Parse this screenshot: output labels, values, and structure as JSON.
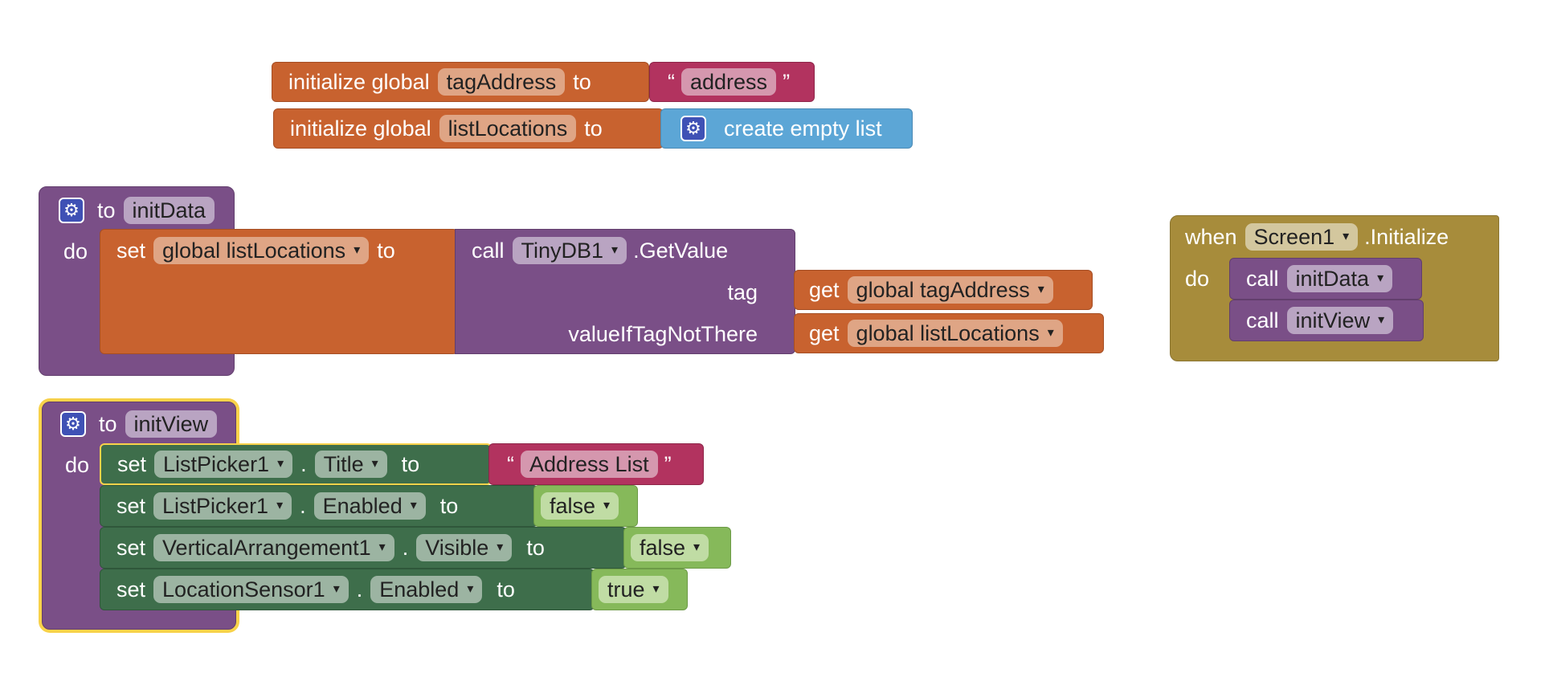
{
  "globals": {
    "tag_address": {
      "kw": "initialize global",
      "name": "tagAddress",
      "to": "to",
      "value": "address",
      "quote_open": "“",
      "quote_close": "”"
    },
    "list_locations": {
      "kw": "initialize global",
      "name": "listLocations",
      "to": "to",
      "value": "create empty list"
    }
  },
  "init_data": {
    "to": "to",
    "name": "initData",
    "do": "do",
    "set": "set",
    "var": "global listLocations",
    "set_to": "to",
    "call": "call",
    "component": "TinyDB1",
    "method": ".GetValue",
    "tag_label": "tag",
    "get1": "get",
    "get1_var": "global tagAddress",
    "vitnt_label": "valueIfTagNotThere",
    "get2": "get",
    "get2_var": "global listLocations"
  },
  "init_view": {
    "to": "to",
    "name": "initView",
    "do": "do",
    "rows": [
      {
        "set": "set",
        "component": "ListPicker1",
        "dot": ".",
        "prop": "Title",
        "to": "to",
        "value": "Address List",
        "q1": "“",
        "q2": "”"
      },
      {
        "set": "set",
        "component": "ListPicker1",
        "dot": ".",
        "prop": "Enabled",
        "to": "to",
        "value": "false"
      },
      {
        "set": "set",
        "component": "VerticalArrangement1",
        "dot": ".",
        "prop": "Visible",
        "to": "to",
        "value": "false"
      },
      {
        "set": "set",
        "component": "LocationSensor1",
        "dot": ".",
        "prop": "Enabled",
        "to": "to",
        "value": "true"
      }
    ]
  },
  "screen_init": {
    "when": "when",
    "component": "Screen1",
    "event": ".Initialize",
    "do": "do",
    "calls": [
      {
        "call": "call",
        "proc": "initData"
      },
      {
        "call": "call",
        "proc": "initView"
      }
    ]
  },
  "icons": {
    "gear": "gear-icon",
    "dropdown": "dropdown-arrow-icon"
  },
  "colors": {
    "procedure": "#7a4f87",
    "variable": "#c8622f",
    "text": "#b2335f",
    "list": "#5ca6d6",
    "event": "#a78c3b",
    "component_setter": "#3e6e4b",
    "logic": "#86b95a",
    "selection": "#f8d24a"
  }
}
